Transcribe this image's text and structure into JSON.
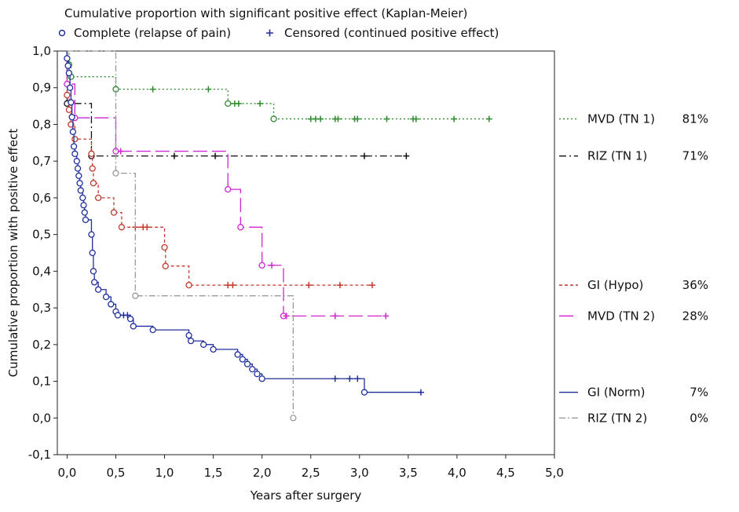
{
  "chart_data": {
    "type": "line",
    "subtype": "kaplan-meier step plot",
    "title": "Cumulative proportion with significant positive effect (Kaplan-Meier)",
    "header_legend": [
      {
        "marker": "circle",
        "label": "Complete (relapse of pain)"
      },
      {
        "marker": "plus",
        "label": "Censored (continued positive effect)"
      }
    ],
    "xlabel": "Years after surgery",
    "ylabel": "Cumulative proportion with positive effect",
    "xlim": [
      -0.1,
      5.0
    ],
    "ylim": [
      -0.1,
      1.0
    ],
    "x_ticks": [
      0.0,
      0.5,
      1.0,
      1.5,
      2.0,
      2.5,
      3.0,
      3.5,
      4.0,
      4.5,
      5.0
    ],
    "x_tick_labels": [
      "0,0",
      "0,5",
      "1,0",
      "1,5",
      "2,0",
      "2,5",
      "3,0",
      "3,5",
      "4,0",
      "4,5",
      "5,0"
    ],
    "y_ticks": [
      -0.1,
      0.0,
      0.1,
      0.2,
      0.3,
      0.4,
      0.5,
      0.6,
      0.7,
      0.8,
      0.9,
      1.0
    ],
    "y_tick_labels": [
      "-0,1",
      "0,0",
      "0,1",
      "0,2",
      "0,3",
      "0,4",
      "0,5",
      "0,6",
      "0,7",
      "0,8",
      "0,9",
      "1,0"
    ],
    "grid": false,
    "legend_position": "right",
    "series": [
      {
        "name": "MVD (TN 1)",
        "percent": "81%",
        "color": "#2e8b2e",
        "dash": "2,3",
        "steps": [
          [
            0,
            1.0
          ],
          [
            0.02,
            0.963
          ],
          [
            0.04,
            0.93
          ],
          [
            0.5,
            0.896
          ],
          [
            1.65,
            0.857
          ],
          [
            2.12,
            0.815
          ]
        ],
        "end": 4.33,
        "events": [
          0.02,
          0.04,
          0.5,
          1.65,
          2.12
        ],
        "censored": [
          0.88,
          1.45,
          1.72,
          1.76,
          1.98,
          2.5,
          2.55,
          2.6,
          2.75,
          2.78,
          2.95,
          2.98,
          3.28,
          3.55,
          3.58,
          3.97,
          4.33
        ]
      },
      {
        "name": "RIZ (TN 1)",
        "percent": "71%",
        "color": "#111111",
        "dash": "9,4,2,4",
        "steps": [
          [
            0,
            1.0
          ],
          [
            0.0,
            0.857
          ],
          [
            0.25,
            0.714
          ]
        ],
        "end": 3.48,
        "events": [
          0.0,
          0.25
        ],
        "censored": [
          1.1,
          1.52,
          3.05,
          3.48
        ]
      },
      {
        "name": "GI (Hypo)",
        "percent": "36%",
        "color": "#c0392b",
        "dash": "4,3",
        "steps": [
          [
            0,
            1.0
          ],
          [
            0.0,
            0.88
          ],
          [
            0.02,
            0.84
          ],
          [
            0.04,
            0.8
          ],
          [
            0.08,
            0.76
          ],
          [
            0.25,
            0.72
          ],
          [
            0.26,
            0.68
          ],
          [
            0.27,
            0.64
          ],
          [
            0.32,
            0.6
          ],
          [
            0.48,
            0.56
          ],
          [
            0.56,
            0.52
          ],
          [
            1.0,
            0.465
          ],
          [
            1.01,
            0.414
          ],
          [
            1.25,
            0.362
          ]
        ],
        "end": 3.13,
        "events": [
          0.0,
          0.02,
          0.04,
          0.08,
          0.25,
          0.26,
          0.27,
          0.32,
          0.48,
          0.56,
          1.0,
          1.01,
          1.25
        ],
        "censored": [
          0.7,
          0.78,
          0.82,
          1.65,
          1.7,
          2.48,
          2.8,
          3.13
        ]
      },
      {
        "name": "MVD (TN 2)",
        "percent": "28%",
        "color": "#d025d0",
        "dash": "18,6",
        "steps": [
          [
            0,
            1.0
          ],
          [
            0.0,
            0.91
          ],
          [
            0.08,
            0.818
          ],
          [
            0.5,
            0.727
          ],
          [
            1.65,
            0.623
          ],
          [
            1.78,
            0.52
          ],
          [
            2.0,
            0.416
          ],
          [
            2.22,
            0.278
          ]
        ],
        "end": 3.27,
        "events": [
          0.0,
          0.08,
          0.5,
          1.65,
          1.78,
          2.0,
          2.22
        ],
        "censored": [
          0.55,
          2.1,
          2.25,
          2.75,
          3.27
        ]
      },
      {
        "name": "GI (Norm)",
        "percent": "7%",
        "color": "#1f2f9e",
        "dash": "",
        "steps": [
          [
            0,
            1.0
          ],
          [
            0.0,
            0.98
          ],
          [
            0.01,
            0.96
          ],
          [
            0.02,
            0.94
          ],
          [
            0.03,
            0.9
          ],
          [
            0.04,
            0.86
          ],
          [
            0.05,
            0.82
          ],
          [
            0.06,
            0.78
          ],
          [
            0.07,
            0.74
          ],
          [
            0.08,
            0.72
          ],
          [
            0.1,
            0.7
          ],
          [
            0.11,
            0.68
          ],
          [
            0.12,
            0.66
          ],
          [
            0.13,
            0.64
          ],
          [
            0.14,
            0.62
          ],
          [
            0.16,
            0.6
          ],
          [
            0.17,
            0.58
          ],
          [
            0.18,
            0.56
          ],
          [
            0.19,
            0.54
          ],
          [
            0.25,
            0.5
          ],
          [
            0.26,
            0.45
          ],
          [
            0.27,
            0.4
          ],
          [
            0.28,
            0.37
          ],
          [
            0.32,
            0.35
          ],
          [
            0.4,
            0.33
          ],
          [
            0.45,
            0.31
          ],
          [
            0.5,
            0.29
          ],
          [
            0.52,
            0.28
          ],
          [
            0.65,
            0.27
          ],
          [
            0.68,
            0.25
          ],
          [
            0.88,
            0.24
          ],
          [
            1.25,
            0.225
          ],
          [
            1.27,
            0.21
          ],
          [
            1.4,
            0.2
          ],
          [
            1.5,
            0.187
          ],
          [
            1.75,
            0.173
          ],
          [
            1.8,
            0.16
          ],
          [
            1.85,
            0.147
          ],
          [
            1.9,
            0.133
          ],
          [
            1.95,
            0.12
          ],
          [
            2.0,
            0.107
          ],
          [
            3.05,
            0.07
          ]
        ],
        "end": 3.63,
        "events": [
          0.0,
          0.01,
          0.02,
          0.03,
          0.04,
          0.05,
          0.06,
          0.07,
          0.08,
          0.1,
          0.11,
          0.12,
          0.13,
          0.14,
          0.16,
          0.17,
          0.18,
          0.19,
          0.25,
          0.26,
          0.27,
          0.28,
          0.32,
          0.4,
          0.45,
          0.5,
          0.52,
          0.65,
          0.68,
          0.88,
          1.25,
          1.27,
          1.4,
          1.5,
          1.75,
          1.8,
          1.85,
          1.9,
          1.95,
          2.0,
          3.05
        ],
        "censored": [
          0.58,
          0.62,
          2.75,
          2.9,
          2.98,
          3.63
        ]
      },
      {
        "name": "RIZ (TN 2)",
        "percent": "0%",
        "color": "#9a9a9a",
        "dash": "8,3,2,3",
        "steps": [
          [
            0,
            1.0
          ],
          [
            0.5,
            0.667
          ],
          [
            0.7,
            0.333
          ],
          [
            2.32,
            0.0
          ]
        ],
        "end": 2.32,
        "events": [
          0.5,
          0.7,
          2.32
        ],
        "censored": []
      }
    ]
  }
}
